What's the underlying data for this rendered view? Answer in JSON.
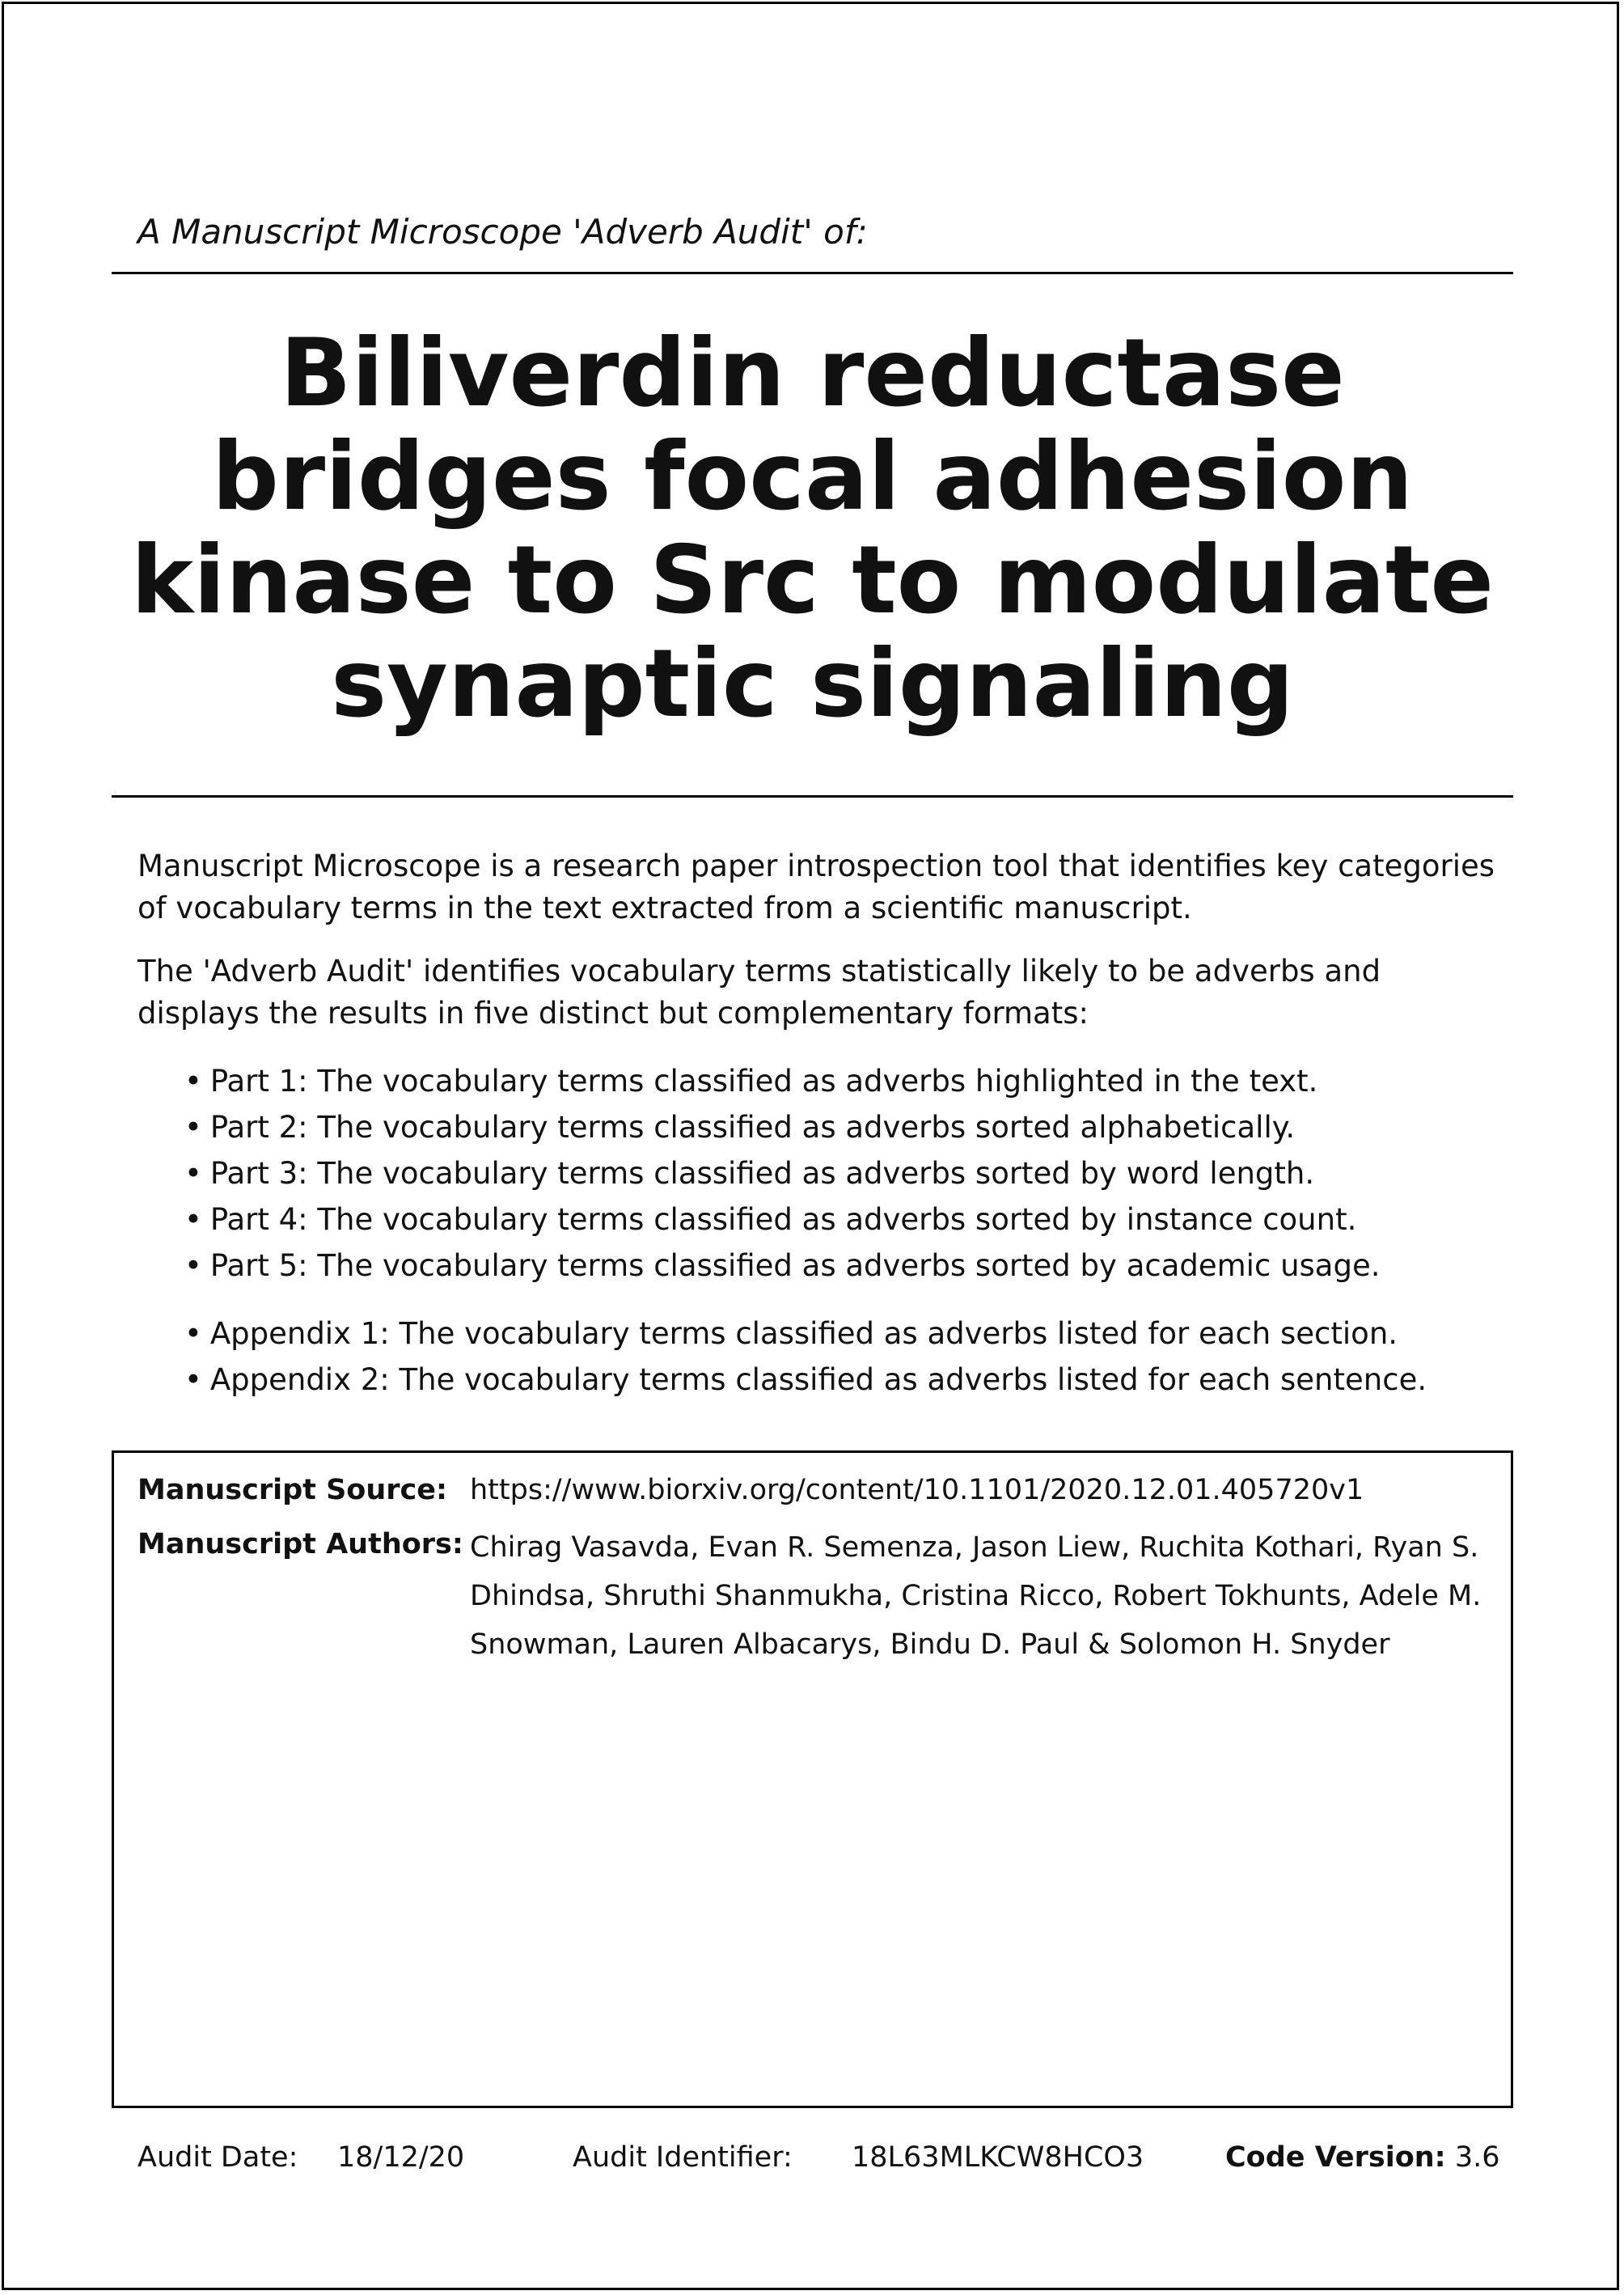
{
  "header": {
    "subtitle": "A Manuscript Microscope 'Adverb Audit' of:"
  },
  "title_lines": [
    "Biliverdin reductase",
    "bridges focal adhesion",
    "kinase to Src to modulate",
    "synaptic signaling"
  ],
  "intro": {
    "paragraph1": "Manuscript Microscope is a research paper introspection tool that identifies key categories of vocabulary terms in the text extracted from a scientific manuscript.",
    "paragraph2": "The 'Adverb Audit' identifies vocabulary terms statistically likely to be adverbs and displays the results in five distinct but complementary formats:"
  },
  "bullet_glyph": "•",
  "parts": [
    "Part 1: The vocabulary terms classified as adverbs highlighted in the text.",
    "Part 2: The vocabulary terms classified as adverbs sorted alphabetically.",
    "Part 3: The vocabulary terms classified as adverbs sorted by word length.",
    "Part 4: The vocabulary terms classified as adverbs sorted by instance count.",
    "Part 5: The vocabulary terms classified as adverbs sorted by academic usage."
  ],
  "appendices": [
    "Appendix 1: The vocabulary terms classified as adverbs listed for each section.",
    "Appendix 2: The vocabulary terms classified as adverbs listed for each sentence."
  ],
  "manuscript": {
    "source_label": "Manuscript Source:",
    "source_value": "https://www.biorxiv.org/content/10.1101/2020.12.01.405720v1",
    "authors_label": "Manuscript Authors:",
    "authors_lines": [
      "Chirag Vasavda, Evan R. Semenza, Jason Liew, Ruchita Kothari, Ryan S.",
      "Dhindsa, Shruthi Shanmukha, Cristina Ricco, Robert Tokhunts, Adele M.",
      "Snowman, Lauren Albacarys, Bindu D. Paul & Solomon H. Snyder"
    ]
  },
  "footer": {
    "audit_date_label": "Audit Date:",
    "audit_date_value": "18/12/20",
    "audit_id_label": "Audit Identifier:",
    "audit_id_value": "18L63MLKCW8HCO3",
    "code_version_label": "Code Version:",
    "code_version_value": "3.6"
  }
}
